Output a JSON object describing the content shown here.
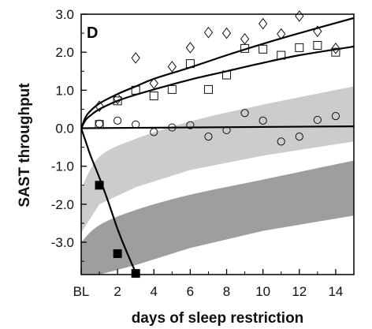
{
  "chart_data": {
    "type": "scatter",
    "panel_label": "D",
    "xlabel": "days of sleep restriction",
    "ylabel": "SAST throughput",
    "xlim": [
      0,
      15
    ],
    "ylim": [
      -3.85,
      3.0
    ],
    "x_ticks": [
      {
        "value": 0,
        "label": "BL"
      },
      {
        "value": 2,
        "label": "2"
      },
      {
        "value": 4,
        "label": "4"
      },
      {
        "value": 6,
        "label": "6"
      },
      {
        "value": 8,
        "label": "8"
      },
      {
        "value": 10,
        "label": "10"
      },
      {
        "value": 12,
        "label": "12"
      },
      {
        "value": 14,
        "label": "14"
      }
    ],
    "y_ticks": [
      {
        "value": 3.0,
        "label": "3.0"
      },
      {
        "value": 2.0,
        "label": "2.0"
      },
      {
        "value": 1.0,
        "label": "1.0"
      },
      {
        "value": 0.0,
        "label": "0.0"
      },
      {
        "value": -1.0,
        "label": "-1.0"
      },
      {
        "value": -2.0,
        "label": "-2.0"
      },
      {
        "value": -3.0,
        "label": "-3.0"
      }
    ],
    "grid": false,
    "bands": [
      {
        "color": "#cccccc",
        "upper": [
          [
            0,
            -1.6
          ],
          [
            1,
            -0.75
          ],
          [
            3,
            -0.28
          ],
          [
            6,
            0.18
          ],
          [
            10,
            0.62
          ],
          [
            15,
            1.1
          ]
        ],
        "lower": [
          [
            0,
            -2.75
          ],
          [
            1,
            -2.0
          ],
          [
            3,
            -1.55
          ],
          [
            6,
            -1.1
          ],
          [
            10,
            -0.72
          ],
          [
            15,
            -0.35
          ]
        ]
      },
      {
        "color": "#9e9e9e",
        "upper": [
          [
            0,
            -3.0
          ],
          [
            1,
            -2.55
          ],
          [
            3,
            -2.15
          ],
          [
            6,
            -1.75
          ],
          [
            10,
            -1.35
          ],
          [
            15,
            -0.85
          ]
        ],
        "lower": [
          [
            0,
            -3.85
          ],
          [
            1,
            -3.85
          ],
          [
            3,
            -3.6
          ],
          [
            6,
            -3.15
          ],
          [
            10,
            -2.7
          ],
          [
            15,
            -2.3
          ]
        ]
      }
    ],
    "curves": [
      {
        "name": "diamond-fit",
        "points": [
          [
            0,
            0
          ],
          [
            0.25,
            0.3
          ],
          [
            0.5,
            0.45
          ],
          [
            1,
            0.65
          ],
          [
            2,
            0.9
          ],
          [
            3,
            1.1
          ],
          [
            4,
            1.3
          ],
          [
            6,
            1.6
          ],
          [
            8,
            1.92
          ],
          [
            10,
            2.22
          ],
          [
            12,
            2.5
          ],
          [
            15,
            2.9
          ]
        ]
      },
      {
        "name": "square-fit",
        "points": [
          [
            0,
            0
          ],
          [
            0.25,
            0.22
          ],
          [
            0.5,
            0.33
          ],
          [
            1,
            0.5
          ],
          [
            2,
            0.72
          ],
          [
            3,
            0.88
          ],
          [
            4,
            1.02
          ],
          [
            6,
            1.28
          ],
          [
            8,
            1.5
          ],
          [
            10,
            1.72
          ],
          [
            12,
            1.92
          ],
          [
            15,
            2.15
          ]
        ]
      },
      {
        "name": "circle-fit",
        "points": [
          [
            0,
            0
          ],
          [
            15,
            0.05
          ]
        ]
      },
      {
        "name": "filled-square-fit",
        "points": [
          [
            0,
            0
          ],
          [
            0.25,
            -0.35
          ],
          [
            0.5,
            -0.7
          ],
          [
            1,
            -1.3
          ],
          [
            1.5,
            -1.95
          ],
          [
            2,
            -2.65
          ],
          [
            2.5,
            -3.25
          ],
          [
            3.05,
            -3.85
          ]
        ]
      }
    ],
    "series": [
      {
        "marker": "diamond",
        "values": [
          [
            1,
            0.58
          ],
          [
            2,
            0.78
          ],
          [
            3,
            1.85
          ],
          [
            4,
            1.18
          ],
          [
            5,
            1.62
          ],
          [
            6,
            2.12
          ],
          [
            7,
            2.52
          ],
          [
            8,
            2.5
          ],
          [
            9,
            2.35
          ],
          [
            10,
            2.75
          ],
          [
            11,
            2.48
          ],
          [
            12,
            2.95
          ],
          [
            13,
            2.55
          ],
          [
            14,
            2.1
          ]
        ]
      },
      {
        "marker": "square",
        "values": [
          [
            1,
            0.1
          ],
          [
            2,
            0.72
          ],
          [
            3,
            1.0
          ],
          [
            4,
            0.85
          ],
          [
            5,
            1.02
          ],
          [
            6,
            1.7
          ],
          [
            7,
            1.02
          ],
          [
            8,
            1.4
          ],
          [
            9,
            2.1
          ],
          [
            10,
            2.08
          ],
          [
            11,
            1.92
          ],
          [
            12,
            2.12
          ],
          [
            13,
            2.18
          ],
          [
            14,
            2.0
          ]
        ]
      },
      {
        "marker": "circle",
        "values": [
          [
            1,
            0.12
          ],
          [
            2,
            0.2
          ],
          [
            3,
            0.1
          ],
          [
            4,
            -0.1
          ],
          [
            5,
            0.02
          ],
          [
            6,
            0.08
          ],
          [
            7,
            -0.22
          ],
          [
            8,
            -0.05
          ],
          [
            9,
            0.4
          ],
          [
            10,
            0.2
          ],
          [
            11,
            -0.35
          ],
          [
            12,
            -0.22
          ],
          [
            13,
            0.22
          ],
          [
            14,
            0.32
          ]
        ]
      },
      {
        "marker": "filled-square",
        "values": [
          [
            1,
            -1.5
          ],
          [
            2,
            -3.3
          ],
          [
            3,
            -3.82
          ]
        ]
      }
    ]
  }
}
